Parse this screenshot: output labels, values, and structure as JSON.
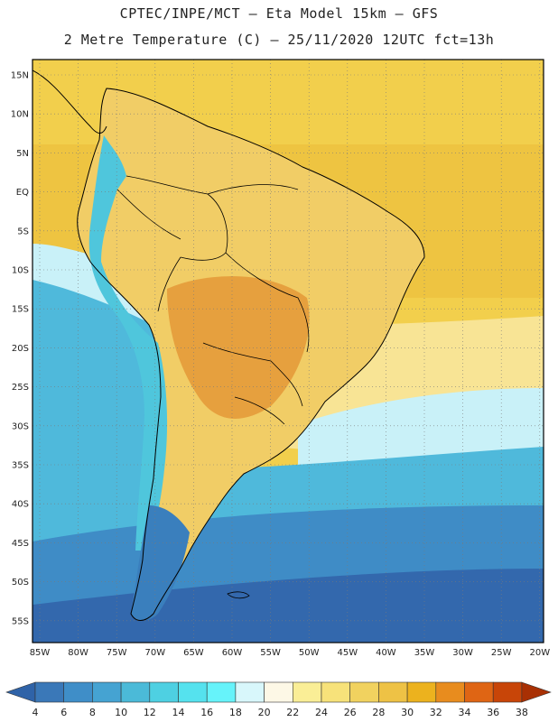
{
  "header": {
    "line1": "CPTEC/INPE/MCT –  Eta Model 15km – GFS",
    "line2": "2 Metre Temperature (C) – 25/11/2020 12UTC fct=13h"
  },
  "map": {
    "lat_labels": [
      "15N",
      "10N",
      "5N",
      "EQ",
      "5S",
      "10S",
      "15S",
      "20S",
      "25S",
      "30S",
      "35S",
      "40S",
      "45S",
      "50S",
      "55S"
    ],
    "lon_labels": [
      "85W",
      "80W",
      "75W",
      "70W",
      "65W",
      "60W",
      "55W",
      "50W",
      "45W",
      "40W",
      "35W",
      "30W",
      "25W",
      "20W"
    ]
  },
  "colorbar": {
    "labels": [
      "4",
      "6",
      "8",
      "10",
      "12",
      "14",
      "16",
      "18",
      "20",
      "22",
      "24",
      "26",
      "28",
      "30",
      "32",
      "34",
      "36",
      "38"
    ],
    "colors": [
      "#2f63a8",
      "#3a78b8",
      "#3f8ec8",
      "#45a3d2",
      "#4bbad8",
      "#4ed0e2",
      "#55e2ee",
      "#66f3fa",
      "#d8f7fb",
      "#fdf8e6",
      "#faee96",
      "#f7e27a",
      "#f1d25f",
      "#eec245",
      "#ecb21e",
      "#e88c1e",
      "#df6514",
      "#c84508",
      "#a83004"
    ]
  },
  "theme": {
    "ocean_warm": "#f2cf4c",
    "ocean_hot": "#eec441",
    "ocean_mild": "#f8e495",
    "ocean_cool": "#c9f1f8",
    "ocean_cold": "#4fb9db",
    "ocean_colder": "#3f8cc6",
    "ocean_coldest": "#3368ad",
    "land_hot": "#e6a03e",
    "land_warm": "#f1cd66",
    "land_andes": "#4fc6dc",
    "land_patagonia": "#3a7fbd"
  }
}
